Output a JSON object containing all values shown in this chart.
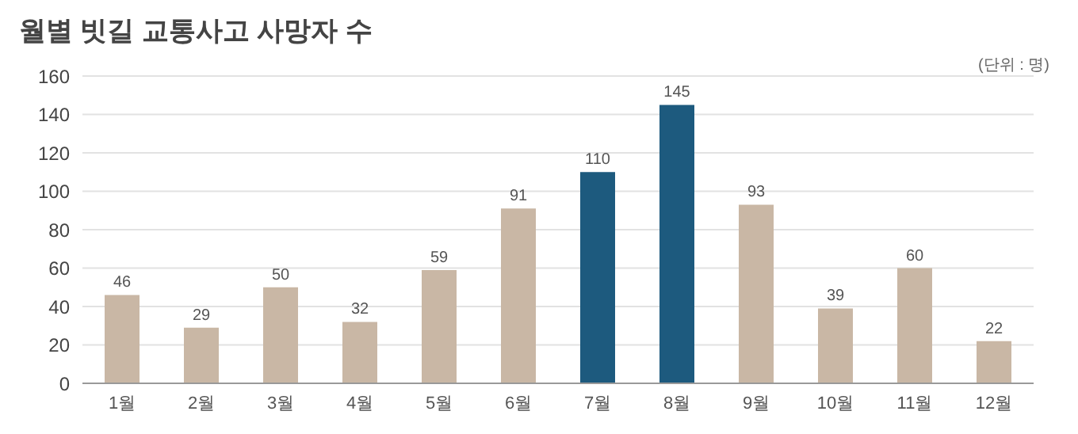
{
  "chart_data": {
    "type": "bar",
    "title": "월별 빗길 교통사고 사망자 수",
    "annotations": [
      "(단위 : 명)"
    ],
    "categories": [
      "1월",
      "2월",
      "3월",
      "4월",
      "5월",
      "6월",
      "7월",
      "8월",
      "9월",
      "10월",
      "11월",
      "12월"
    ],
    "values": [
      46,
      29,
      50,
      32,
      59,
      91,
      110,
      145,
      93,
      39,
      60,
      22
    ],
    "colors": [
      "#c9b7a5",
      "#c9b7a5",
      "#c9b7a5",
      "#c9b7a5",
      "#c9b7a5",
      "#c9b7a5",
      "#1d5a7e",
      "#1d5a7e",
      "#c9b7a5",
      "#c9b7a5",
      "#c9b7a5",
      "#c9b7a5"
    ],
    "ylim": [
      0,
      160
    ],
    "yticks": [
      0,
      20,
      40,
      60,
      80,
      100,
      120,
      140,
      160
    ],
    "grid": "y",
    "data_labels": true
  }
}
